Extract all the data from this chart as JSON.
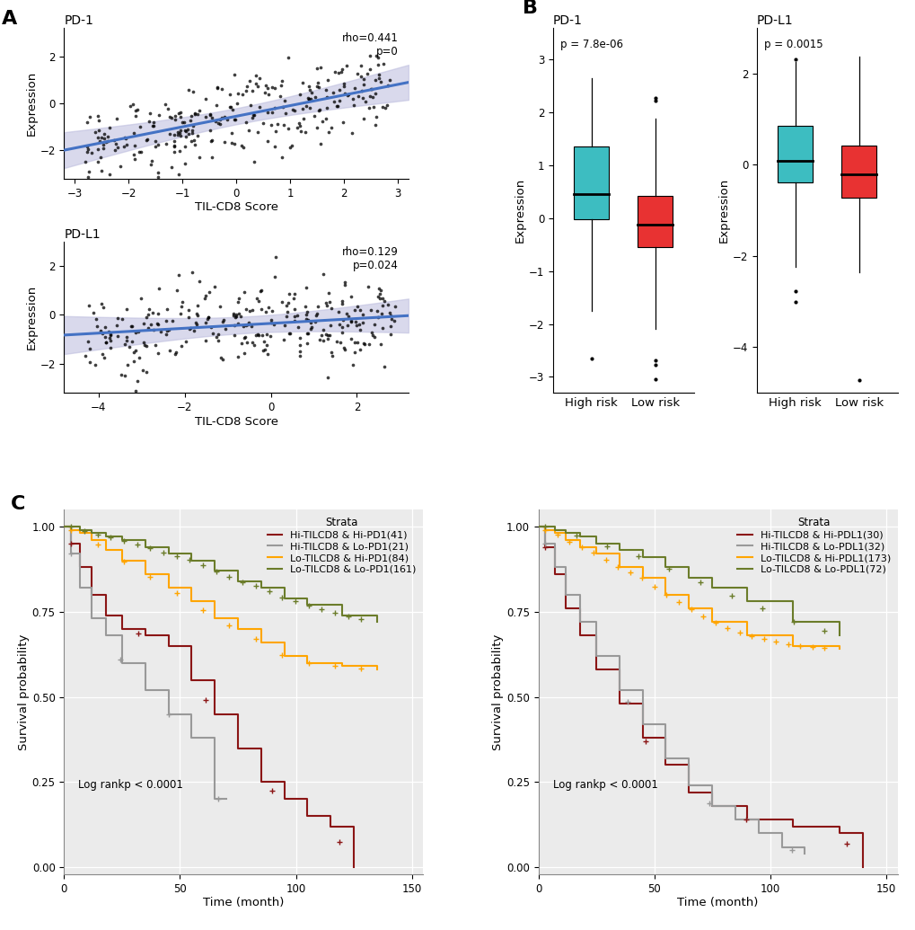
{
  "scatter_pd1": {
    "title": "PD-1",
    "xlabel": "TIL-CD8 Score",
    "ylabel": "Expression",
    "xlim": [
      -3.2,
      3.2
    ],
    "ylim": [
      -3.2,
      3.2
    ],
    "xticks": [
      -3,
      -2,
      -1,
      0,
      1,
      2,
      3
    ],
    "yticks": [
      -2,
      0,
      2
    ],
    "rho": "rho=0.441",
    "pval": "p=0",
    "line_slope": 0.45,
    "line_intercept": -0.55,
    "n_points": 290
  },
  "scatter_pdl1": {
    "title": "PD-L1",
    "xlabel": "TIL-CD8 Score",
    "ylabel": "Expression",
    "xlim": [
      -4.8,
      3.2
    ],
    "ylim": [
      -3.2,
      3.0
    ],
    "xticks": [
      -4,
      -2,
      0,
      2
    ],
    "yticks": [
      -2,
      0,
      2
    ],
    "rho": "rho=0.129",
    "pval": "p=0.024",
    "line_slope": 0.1,
    "line_intercept": -0.35,
    "n_points": 290
  },
  "box_pd1": {
    "title": "PD-1",
    "ylabel": "Expression",
    "pval": "p = 7.8e-06",
    "ylim": [
      -3.3,
      3.6
    ],
    "yticks": [
      -3,
      -2,
      -1,
      0,
      1,
      2,
      3
    ],
    "high_risk": {
      "q1": -0.02,
      "median": 0.45,
      "q3": 1.35,
      "whisker_low": -1.75,
      "whisker_high": 2.65,
      "outliers": [
        -2.65
      ]
    },
    "low_risk": {
      "q1": -0.55,
      "median": -0.12,
      "q3": 0.42,
      "whisker_low": -2.1,
      "whisker_high": 1.88,
      "outliers": [
        -2.68,
        -2.78,
        -3.05,
        2.22,
        2.28
      ]
    },
    "colors": [
      "#3DBDC1",
      "#E83232"
    ]
  },
  "box_pdl1": {
    "title": "PD-L1",
    "ylabel": "Expression",
    "pval": "p = 0.0015",
    "ylim": [
      -5.0,
      3.0
    ],
    "yticks": [
      -4,
      -2,
      0,
      2
    ],
    "high_risk": {
      "q1": -0.38,
      "median": 0.08,
      "q3": 0.85,
      "whisker_low": -2.25,
      "whisker_high": 2.25,
      "outliers": [
        -2.78,
        -3.0,
        2.32
      ]
    },
    "low_risk": {
      "q1": -0.72,
      "median": -0.22,
      "q3": 0.42,
      "whisker_low": -2.35,
      "whisker_high": 2.38,
      "outliers": [
        -4.72
      ]
    },
    "colors": [
      "#3DBDC1",
      "#E83232"
    ]
  },
  "km_pd1": {
    "xlabel": "Time (month)",
    "ylabel": "Survival probability",
    "logrank": "Log rankp < 0.0001",
    "xlim": [
      0,
      155
    ],
    "ylim": [
      -0.02,
      1.05
    ],
    "xticks": [
      0,
      50,
      100,
      150
    ],
    "yticks": [
      0.0,
      0.25,
      0.5,
      0.75,
      1.0
    ],
    "strata": [
      {
        "label": "Hi-TILCD8 & Hi-PD1(41)",
        "color": "#8B1515",
        "n": 41
      },
      {
        "label": "Hi-TILCD8 & Lo-PD1(21)",
        "color": "#999999",
        "n": 21
      },
      {
        "label": "Lo-TILCD8 & Hi-PD1(84)",
        "color": "#FFA500",
        "n": 84
      },
      {
        "label": "Lo-TILCD8 & Lo-PD1(161)",
        "color": "#6B7C2A",
        "n": 161
      }
    ],
    "profiles": [
      [
        [
          0,
          1.0
        ],
        [
          3,
          0.95
        ],
        [
          7,
          0.88
        ],
        [
          12,
          0.8
        ],
        [
          18,
          0.74
        ],
        [
          25,
          0.7
        ],
        [
          35,
          0.68
        ],
        [
          45,
          0.65
        ],
        [
          55,
          0.55
        ],
        [
          65,
          0.45
        ],
        [
          75,
          0.35
        ],
        [
          85,
          0.25
        ],
        [
          95,
          0.2
        ],
        [
          105,
          0.15
        ],
        [
          115,
          0.12
        ],
        [
          125,
          0.0
        ]
      ],
      [
        [
          0,
          1.0
        ],
        [
          3,
          0.92
        ],
        [
          7,
          0.82
        ],
        [
          12,
          0.73
        ],
        [
          18,
          0.68
        ],
        [
          25,
          0.6
        ],
        [
          35,
          0.52
        ],
        [
          45,
          0.45
        ],
        [
          55,
          0.38
        ],
        [
          65,
          0.2
        ],
        [
          70,
          0.2
        ]
      ],
      [
        [
          0,
          1.0
        ],
        [
          3,
          0.99
        ],
        [
          7,
          0.98
        ],
        [
          12,
          0.96
        ],
        [
          18,
          0.93
        ],
        [
          25,
          0.9
        ],
        [
          35,
          0.86
        ],
        [
          45,
          0.82
        ],
        [
          55,
          0.78
        ],
        [
          65,
          0.73
        ],
        [
          75,
          0.7
        ],
        [
          85,
          0.66
        ],
        [
          95,
          0.62
        ],
        [
          105,
          0.6
        ],
        [
          120,
          0.59
        ],
        [
          135,
          0.58
        ]
      ],
      [
        [
          0,
          1.0
        ],
        [
          3,
          1.0
        ],
        [
          7,
          0.99
        ],
        [
          12,
          0.98
        ],
        [
          18,
          0.97
        ],
        [
          25,
          0.96
        ],
        [
          35,
          0.94
        ],
        [
          45,
          0.92
        ],
        [
          55,
          0.9
        ],
        [
          65,
          0.87
        ],
        [
          75,
          0.84
        ],
        [
          85,
          0.82
        ],
        [
          95,
          0.79
        ],
        [
          105,
          0.77
        ],
        [
          120,
          0.74
        ],
        [
          135,
          0.72
        ]
      ]
    ]
  },
  "km_pdl1": {
    "xlabel": "Time (month)",
    "ylabel": "Survival probability",
    "logrank": "Log rankp < 0.0001",
    "xlim": [
      0,
      155
    ],
    "ylim": [
      -0.02,
      1.05
    ],
    "xticks": [
      0,
      50,
      100,
      150
    ],
    "yticks": [
      0.0,
      0.25,
      0.5,
      0.75,
      1.0
    ],
    "strata": [
      {
        "label": "Hi-TILCD8 & Hi-PDL1(30)",
        "color": "#8B1515",
        "n": 30
      },
      {
        "label": "Hi-TILCD8 & Lo-PDL1(32)",
        "color": "#999999",
        "n": 32
      },
      {
        "label": "Lo-TILCD8 & Hi-PDL1(173)",
        "color": "#FFA500",
        "n": 173
      },
      {
        "label": "Lo-TILCD8 & Lo-PDL1(72)",
        "color": "#6B7C2A",
        "n": 72
      }
    ],
    "profiles": [
      [
        [
          0,
          1.0
        ],
        [
          3,
          0.94
        ],
        [
          7,
          0.86
        ],
        [
          12,
          0.76
        ],
        [
          18,
          0.68
        ],
        [
          25,
          0.58
        ],
        [
          35,
          0.48
        ],
        [
          45,
          0.38
        ],
        [
          55,
          0.3
        ],
        [
          65,
          0.22
        ],
        [
          75,
          0.18
        ],
        [
          90,
          0.14
        ],
        [
          110,
          0.12
        ],
        [
          130,
          0.1
        ],
        [
          140,
          0.0
        ]
      ],
      [
        [
          0,
          1.0
        ],
        [
          3,
          0.95
        ],
        [
          7,
          0.88
        ],
        [
          12,
          0.8
        ],
        [
          18,
          0.72
        ],
        [
          25,
          0.62
        ],
        [
          35,
          0.52
        ],
        [
          45,
          0.42
        ],
        [
          55,
          0.32
        ],
        [
          65,
          0.24
        ],
        [
          75,
          0.18
        ],
        [
          85,
          0.14
        ],
        [
          95,
          0.1
        ],
        [
          105,
          0.06
        ],
        [
          115,
          0.04
        ]
      ],
      [
        [
          0,
          1.0
        ],
        [
          3,
          0.99
        ],
        [
          7,
          0.98
        ],
        [
          12,
          0.96
        ],
        [
          18,
          0.94
        ],
        [
          25,
          0.92
        ],
        [
          35,
          0.88
        ],
        [
          45,
          0.85
        ],
        [
          55,
          0.8
        ],
        [
          65,
          0.76
        ],
        [
          75,
          0.72
        ],
        [
          90,
          0.68
        ],
        [
          110,
          0.65
        ],
        [
          130,
          0.64
        ]
      ],
      [
        [
          0,
          1.0
        ],
        [
          3,
          1.0
        ],
        [
          7,
          0.99
        ],
        [
          12,
          0.98
        ],
        [
          18,
          0.97
        ],
        [
          25,
          0.95
        ],
        [
          35,
          0.93
        ],
        [
          45,
          0.91
        ],
        [
          55,
          0.88
        ],
        [
          65,
          0.85
        ],
        [
          75,
          0.82
        ],
        [
          90,
          0.78
        ],
        [
          110,
          0.72
        ],
        [
          130,
          0.68
        ]
      ]
    ]
  },
  "line_color": "#4472C4",
  "scatter_color": "#000000",
  "bg_color": "#FFFFFF"
}
